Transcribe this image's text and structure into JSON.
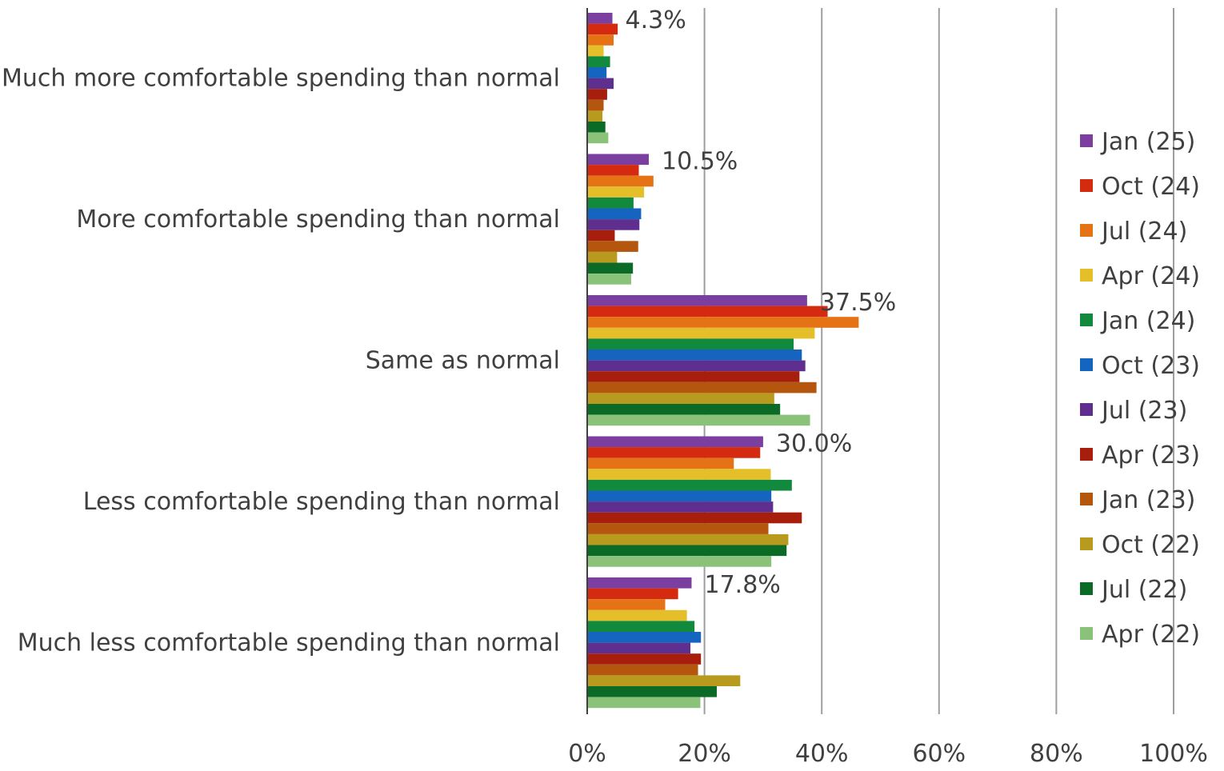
{
  "chart_data": {
    "type": "bar",
    "orientation": "horizontal",
    "title": "",
    "xlabel": "",
    "ylabel": "",
    "xlim": [
      0,
      100
    ],
    "x_ticks": [
      "0%",
      "20%",
      "40%",
      "60%",
      "80%",
      "100%"
    ],
    "grid": "vertical",
    "legend_position": "right",
    "categories": [
      "Much more comfortable spending than normal",
      "More comfortable spending than normal",
      "Same as normal",
      "Less comfortable spending than normal",
      "Much less comfortable spending than normal"
    ],
    "series": [
      {
        "name": "Jan (25)",
        "color": "#7B3FA0",
        "values": [
          4.3,
          10.5,
          37.5,
          30.0,
          17.8
        ]
      },
      {
        "name": "Oct (24)",
        "color": "#D42A10",
        "values": [
          5.2,
          8.8,
          41.0,
          29.5,
          15.5
        ]
      },
      {
        "name": "Jul (24)",
        "color": "#E57316",
        "values": [
          4.5,
          11.3,
          46.3,
          25.0,
          13.3
        ]
      },
      {
        "name": "Apr (24)",
        "color": "#E4BF2A",
        "values": [
          2.8,
          9.7,
          38.8,
          31.3,
          17.0
        ]
      },
      {
        "name": "Jan (24)",
        "color": "#128A3E",
        "values": [
          3.9,
          7.9,
          35.2,
          34.9,
          18.3
        ]
      },
      {
        "name": "Oct (23)",
        "color": "#1565C0",
        "values": [
          3.3,
          9.2,
          36.6,
          31.4,
          19.4
        ]
      },
      {
        "name": "Jul (23)",
        "color": "#5E2F8E",
        "values": [
          4.5,
          8.9,
          37.2,
          31.7,
          17.6
        ]
      },
      {
        "name": "Apr (23)",
        "color": "#A81E0C",
        "values": [
          3.4,
          4.7,
          36.2,
          36.6,
          19.4
        ]
      },
      {
        "name": "Jan (23)",
        "color": "#B5560F",
        "values": [
          2.8,
          8.7,
          39.1,
          30.9,
          18.9
        ]
      },
      {
        "name": "Oct (22)",
        "color": "#B89A1E",
        "values": [
          2.6,
          5.1,
          31.9,
          34.3,
          26.1
        ]
      },
      {
        "name": "Jul (22)",
        "color": "#0B6B26",
        "values": [
          3.1,
          7.8,
          32.9,
          34.0,
          22.1
        ]
      },
      {
        "name": "Apr (22)",
        "color": "#8BC27A",
        "values": [
          3.6,
          7.5,
          38.0,
          31.4,
          19.3
        ]
      }
    ],
    "data_labels": [
      {
        "category_index": 0,
        "series_index": 0,
        "text": "4.3%"
      },
      {
        "category_index": 1,
        "series_index": 0,
        "text": "10.5%"
      },
      {
        "category_index": 2,
        "series_index": 0,
        "text": "37.5%"
      },
      {
        "category_index": 3,
        "series_index": 0,
        "text": "30.0%"
      },
      {
        "category_index": 4,
        "series_index": 0,
        "text": "17.8%"
      }
    ]
  }
}
